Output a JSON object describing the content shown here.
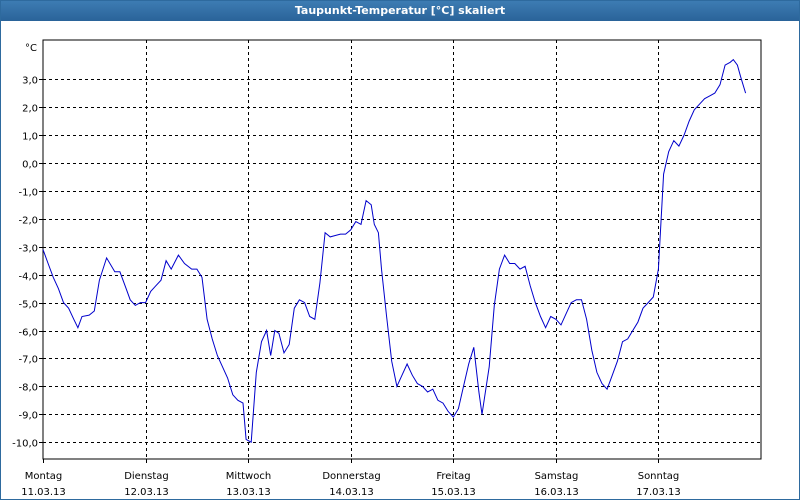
{
  "window": {
    "title": "Taupunkt-Temperatur [°C] skaliert"
  },
  "chart_data": {
    "type": "line",
    "title": "Taupunkt-Temperatur [°C] skaliert",
    "unit_label": "°C",
    "xlabel": "",
    "ylabel": "",
    "xlim": [
      0,
      7.0
    ],
    "ylim": [
      -10.6,
      4.4
    ],
    "grid": true,
    "yticks": [
      3,
      2,
      1,
      0,
      -1,
      -2,
      -3,
      -4,
      -5,
      -6,
      -7,
      -8,
      -9,
      -10
    ],
    "ytick_labels": [
      "3,0",
      "2,0",
      "1,0",
      "0,0",
      "-1,0",
      "-2,0",
      "-3,0",
      "-4,0",
      "-5,0",
      "-6,0",
      "-7,0",
      "-8,0",
      "-9,0",
      "-10,0"
    ],
    "xticks": [
      {
        "x": 0,
        "day": "Montag",
        "date": "11.03.13"
      },
      {
        "x": 1,
        "day": "Dienstag",
        "date": "12.03.13"
      },
      {
        "x": 2,
        "day": "Mittwoch",
        "date": "13.03.13"
      },
      {
        "x": 3,
        "day": "Donnerstag",
        "date": "14.03.13"
      },
      {
        "x": 4,
        "day": "Freitag",
        "date": "15.03.13"
      },
      {
        "x": 5,
        "day": "Samstag",
        "date": "16.03.13"
      },
      {
        "x": 6,
        "day": "Sonntag",
        "date": "17.03.13"
      }
    ],
    "colors": {
      "line": "#0000cc",
      "grid": "#000000",
      "frame": "#2e6a9e"
    },
    "series": [
      {
        "values": [
          [
            0.0,
            -3.1
          ],
          [
            0.05,
            -3.6
          ],
          [
            0.1,
            -4.1
          ],
          [
            0.15,
            -4.5
          ],
          [
            0.2,
            -5.0
          ],
          [
            0.25,
            -5.2
          ],
          [
            0.3,
            -5.6
          ],
          [
            0.34,
            -5.9
          ],
          [
            0.38,
            -5.5
          ],
          [
            0.45,
            -5.45
          ],
          [
            0.5,
            -5.3
          ],
          [
            0.55,
            -4.2
          ],
          [
            0.62,
            -3.4
          ],
          [
            0.7,
            -3.9
          ],
          [
            0.75,
            -3.9
          ],
          [
            0.8,
            -4.4
          ],
          [
            0.85,
            -4.9
          ],
          [
            0.9,
            -5.1
          ],
          [
            0.95,
            -5.0
          ],
          [
            1.0,
            -5.0
          ],
          [
            1.05,
            -4.6
          ],
          [
            1.1,
            -4.4
          ],
          [
            1.15,
            -4.2
          ],
          [
            1.2,
            -3.5
          ],
          [
            1.25,
            -3.8
          ],
          [
            1.32,
            -3.3
          ],
          [
            1.38,
            -3.6
          ],
          [
            1.45,
            -3.8
          ],
          [
            1.5,
            -3.8
          ],
          [
            1.55,
            -4.1
          ],
          [
            1.6,
            -5.6
          ],
          [
            1.65,
            -6.3
          ],
          [
            1.7,
            -6.9
          ],
          [
            1.75,
            -7.3
          ],
          [
            1.8,
            -7.7
          ],
          [
            1.85,
            -8.3
          ],
          [
            1.9,
            -8.5
          ],
          [
            1.95,
            -8.6
          ],
          [
            1.98,
            -9.9
          ],
          [
            2.03,
            -10.0
          ],
          [
            2.08,
            -7.5
          ],
          [
            2.13,
            -6.4
          ],
          [
            2.18,
            -6.0
          ],
          [
            2.22,
            -6.9
          ],
          [
            2.26,
            -6.0
          ],
          [
            2.3,
            -6.1
          ],
          [
            2.35,
            -6.8
          ],
          [
            2.4,
            -6.5
          ],
          [
            2.45,
            -5.2
          ],
          [
            2.5,
            -4.9
          ],
          [
            2.55,
            -5.0
          ],
          [
            2.6,
            -5.5
          ],
          [
            2.65,
            -5.6
          ],
          [
            2.7,
            -4.3
          ],
          [
            2.75,
            -2.5
          ],
          [
            2.8,
            -2.65
          ],
          [
            2.85,
            -2.6
          ],
          [
            2.9,
            -2.55
          ],
          [
            2.95,
            -2.55
          ],
          [
            3.0,
            -2.4
          ],
          [
            3.05,
            -2.1
          ],
          [
            3.1,
            -2.2
          ],
          [
            3.15,
            -1.35
          ],
          [
            3.2,
            -1.5
          ],
          [
            3.23,
            -2.2
          ],
          [
            3.27,
            -2.5
          ],
          [
            3.3,
            -3.8
          ],
          [
            3.35,
            -5.5
          ],
          [
            3.4,
            -7.1
          ],
          [
            3.45,
            -8.0
          ],
          [
            3.5,
            -7.6
          ],
          [
            3.55,
            -7.2
          ],
          [
            3.6,
            -7.6
          ],
          [
            3.65,
            -7.9
          ],
          [
            3.7,
            -8.0
          ],
          [
            3.75,
            -8.2
          ],
          [
            3.8,
            -8.1
          ],
          [
            3.85,
            -8.5
          ],
          [
            3.9,
            -8.6
          ],
          [
            3.95,
            -8.9
          ],
          [
            4.0,
            -9.1
          ],
          [
            4.05,
            -8.8
          ],
          [
            4.1,
            -8.0
          ],
          [
            4.15,
            -7.2
          ],
          [
            4.2,
            -6.6
          ],
          [
            4.25,
            -8.2
          ],
          [
            4.28,
            -9.0
          ],
          [
            4.35,
            -7.3
          ],
          [
            4.4,
            -5.1
          ],
          [
            4.45,
            -3.8
          ],
          [
            4.5,
            -3.3
          ],
          [
            4.55,
            -3.6
          ],
          [
            4.6,
            -3.6
          ],
          [
            4.65,
            -3.8
          ],
          [
            4.7,
            -3.7
          ],
          [
            4.75,
            -4.4
          ],
          [
            4.8,
            -5.0
          ],
          [
            4.85,
            -5.5
          ],
          [
            4.9,
            -5.9
          ],
          [
            4.95,
            -5.5
          ],
          [
            5.0,
            -5.6
          ],
          [
            5.05,
            -5.8
          ],
          [
            5.1,
            -5.4
          ],
          [
            5.15,
            -5.0
          ],
          [
            5.2,
            -4.9
          ],
          [
            5.25,
            -4.9
          ],
          [
            5.3,
            -5.6
          ],
          [
            5.35,
            -6.7
          ],
          [
            5.4,
            -7.5
          ],
          [
            5.45,
            -7.9
          ],
          [
            5.5,
            -8.1
          ],
          [
            5.55,
            -7.6
          ],
          [
            5.6,
            -7.1
          ],
          [
            5.65,
            -6.4
          ],
          [
            5.7,
            -6.3
          ],
          [
            5.75,
            -6.0
          ],
          [
            5.8,
            -5.7
          ],
          [
            5.85,
            -5.2
          ],
          [
            5.9,
            -5.0
          ],
          [
            5.95,
            -4.8
          ],
          [
            6.0,
            -3.8
          ],
          [
            6.05,
            -0.4
          ],
          [
            6.1,
            0.4
          ],
          [
            6.15,
            0.8
          ],
          [
            6.2,
            0.6
          ],
          [
            6.25,
            1.0
          ],
          [
            6.3,
            1.5
          ],
          [
            6.35,
            1.9
          ],
          [
            6.4,
            2.1
          ],
          [
            6.45,
            2.3
          ],
          [
            6.5,
            2.4
          ],
          [
            6.55,
            2.5
          ],
          [
            6.6,
            2.8
          ],
          [
            6.65,
            3.5
          ],
          [
            6.7,
            3.6
          ],
          [
            6.73,
            3.7
          ],
          [
            6.77,
            3.5
          ],
          [
            6.8,
            3.1
          ],
          [
            6.85,
            2.5
          ]
        ]
      }
    ]
  }
}
